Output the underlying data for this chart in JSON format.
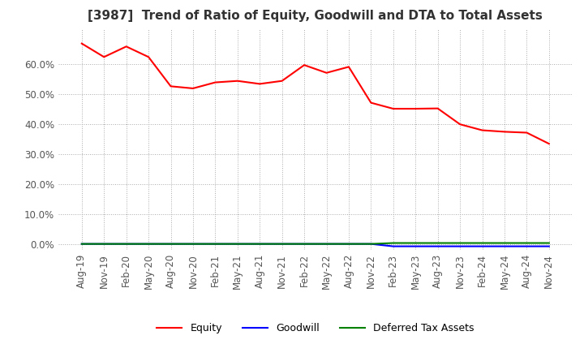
{
  "title": "[3987]  Trend of Ratio of Equity, Goodwill and DTA to Total Assets",
  "x_labels": [
    "Aug-19",
    "Nov-19",
    "Feb-20",
    "May-20",
    "Aug-20",
    "Nov-20",
    "Feb-21",
    "May-21",
    "Aug-21",
    "Nov-21",
    "Feb-22",
    "May-22",
    "Aug-22",
    "Nov-22",
    "Feb-23",
    "May-23",
    "Aug-23",
    "Nov-23",
    "Feb-24",
    "May-24",
    "Aug-24",
    "Nov-24"
  ],
  "equity": [
    0.67,
    0.625,
    0.66,
    0.625,
    0.527,
    0.52,
    0.54,
    0.545,
    0.535,
    0.545,
    0.598,
    0.572,
    0.592,
    0.472,
    0.452,
    0.452,
    0.453,
    0.4,
    0.38,
    0.375,
    0.372,
    0.335
  ],
  "goodwill": [
    0.0,
    0.0,
    0.0,
    0.0,
    0.0,
    0.0,
    0.0,
    0.0,
    0.0,
    0.0,
    0.0,
    0.0,
    0.0,
    0.0,
    -0.008,
    -0.008,
    -0.008,
    -0.008,
    -0.008,
    -0.008,
    -0.008,
    -0.008
  ],
  "dta": [
    0.0,
    0.0,
    0.0,
    0.0,
    0.0,
    0.0,
    0.0,
    0.0,
    0.0,
    0.0,
    0.0,
    0.0,
    0.0,
    0.0,
    0.003,
    0.003,
    0.003,
    0.003,
    0.003,
    0.003,
    0.003,
    0.003
  ],
  "equity_color": "#ff0000",
  "goodwill_color": "#0000ff",
  "dta_color": "#008000",
  "ylim": [
    -0.02,
    0.72
  ],
  "yticks": [
    0.0,
    0.1,
    0.2,
    0.3,
    0.4,
    0.5,
    0.6
  ],
  "background_color": "#ffffff",
  "grid_color": "#aaaaaa",
  "title_fontsize": 11,
  "tick_fontsize": 8.5
}
